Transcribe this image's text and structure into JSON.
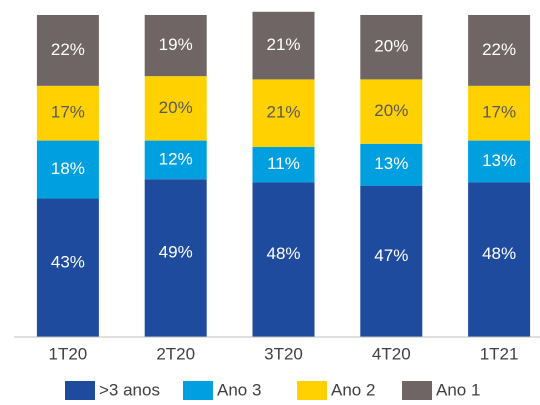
{
  "chart_data": {
    "type": "stacked_bar",
    "categories": [
      "1T20",
      "2T20",
      "3T20",
      "4T20",
      "1T21"
    ],
    "series": [
      {
        "name": ">3 anos",
        "color": "#1f4b9f",
        "label_color": "#ffffff",
        "values": [
          43,
          49,
          48,
          47,
          48
        ],
        "value_labels": [
          "43%",
          "49%",
          "48%",
          "47%",
          "48%"
        ]
      },
      {
        "name": "Ano 3",
        "color": "#009fe0",
        "label_color": "#ffffff",
        "values": [
          18,
          12,
          11,
          13,
          13
        ],
        "value_labels": [
          "18%",
          "12%",
          "11%",
          "13%",
          "13%"
        ]
      },
      {
        "name": "Ano 2",
        "color": "#ffd100",
        "label_color": "#595959",
        "values": [
          17,
          20,
          21,
          20,
          17
        ],
        "value_labels": [
          "17%",
          "20%",
          "21%",
          "20%",
          "17%"
        ]
      },
      {
        "name": "Ano 1",
        "color": "#6f6564",
        "label_color": "#ffffff",
        "values": [
          22,
          19,
          21,
          20,
          22
        ],
        "value_labels": [
          "22%",
          "19%",
          "21%",
          "20%",
          "22%"
        ]
      }
    ],
    "ylim": [
      0,
      100
    ]
  }
}
